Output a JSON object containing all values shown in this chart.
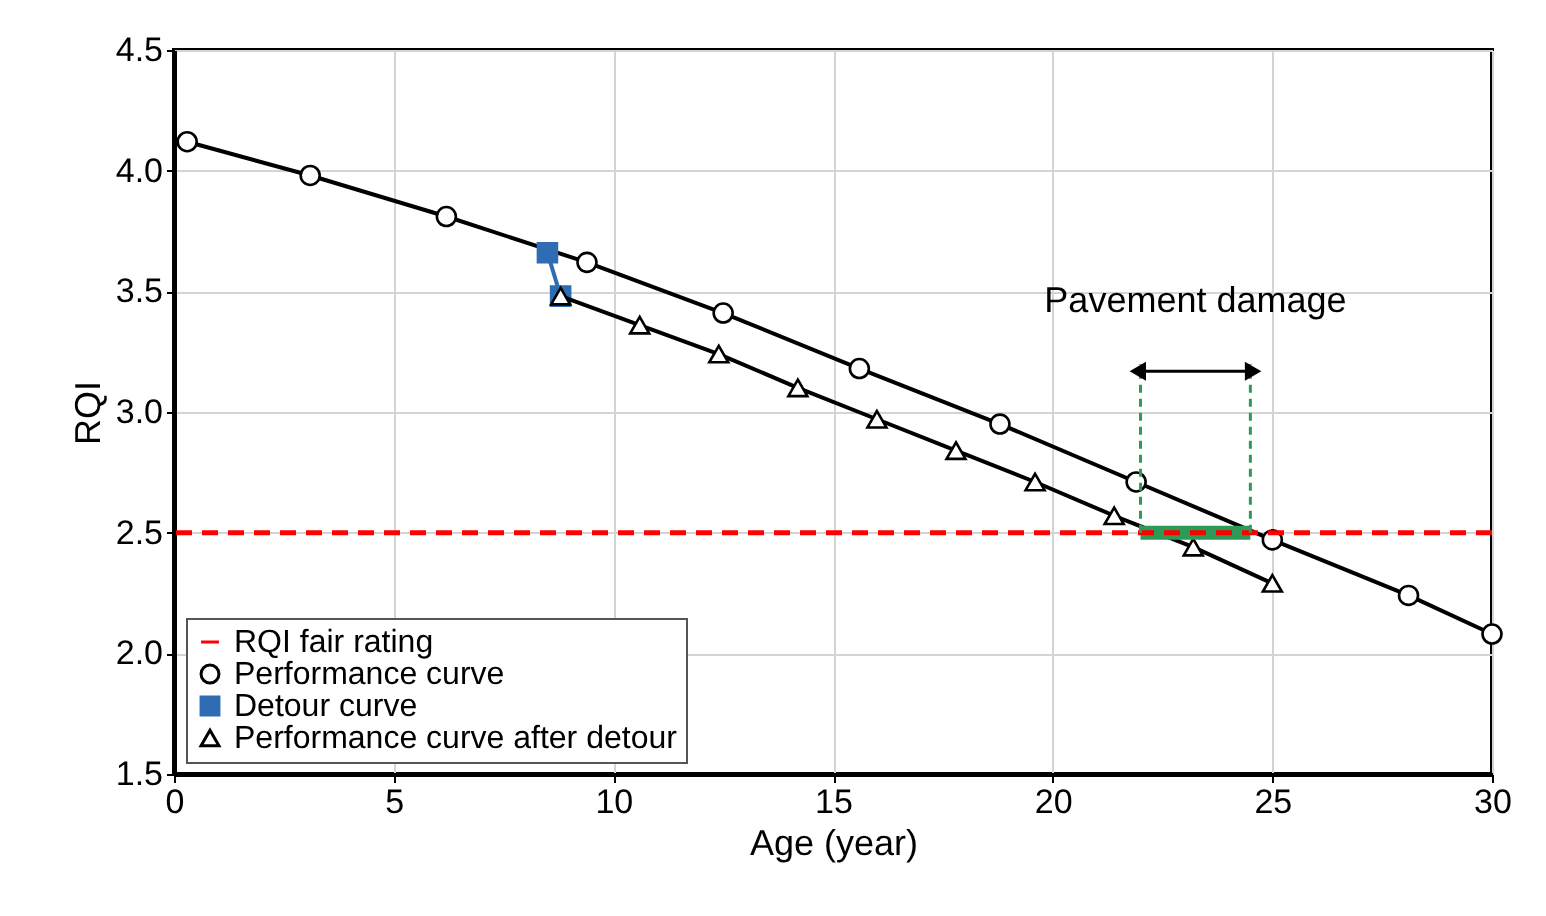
{
  "chart_data": {
    "type": "line",
    "xlabel": "Age (year)",
    "ylabel": "RQI",
    "xlim": [
      0,
      30
    ],
    "xticks": [
      0,
      5,
      10,
      15,
      20,
      25,
      30
    ],
    "ylim": [
      1.5,
      4.5
    ],
    "yticks": [
      1.5,
      {
        "value": 2,
        "label": "2.0"
      },
      2.5,
      {
        "value": 3,
        "label": "3.0"
      },
      3.5,
      {
        "value": 4,
        "label": "4.0"
      },
      4.5
    ],
    "grid": true,
    "legend": "bottom left",
    "series": [
      {
        "name": "Performance curve",
        "color": "#000000",
        "marker": "circle",
        "line_style": "solid",
        "x": [
          0.3,
          3.1,
          6.2,
          9.4,
          12.5,
          15.6,
          18.8,
          21.9,
          25.0,
          28.1,
          30
        ],
        "values": [
          4.12,
          3.98,
          3.81,
          3.62,
          3.41,
          3.18,
          2.95,
          2.71,
          2.47,
          2.24,
          2.08
        ]
      },
      {
        "name": "Detour curve",
        "color": "#2e6db4",
        "marker": "square",
        "line_style": "solid",
        "x": [
          8.5,
          8.8
        ],
        "values": [
          3.66,
          3.48
        ]
      },
      {
        "name": "Performance curve after detour",
        "color": "#000000",
        "marker": "triangle",
        "line_style": "solid",
        "x": [
          8.8,
          10.6,
          12.4,
          14.2,
          16.0,
          17.8,
          19.6,
          21.4,
          23.2,
          25.0
        ],
        "values": [
          3.48,
          3.36,
          3.24,
          3.1,
          2.97,
          2.84,
          2.71,
          2.57,
          2.44,
          2.29
        ]
      },
      {
        "color": "#2e9a57",
        "marker": "none",
        "line_style": "solid",
        "x": [
          22.0,
          24.5
        ],
        "values": [
          2.5,
          2.5
        ]
      }
    ],
    "ref_lines": [
      {
        "axis": "y",
        "value": 2.5,
        "label": "RQI fair rating",
        "color": "#ff0000",
        "line_style": "dashed"
      },
      {
        "axis": "x",
        "value": 22.0,
        "color": "#2e9a57",
        "line_style": "dashed"
      },
      {
        "axis": "x",
        "value": 24.5,
        "color": "#2e9a57",
        "line_style": "dashed"
      }
    ],
    "annotations": [
      "Pavement damage"
    ]
  }
}
